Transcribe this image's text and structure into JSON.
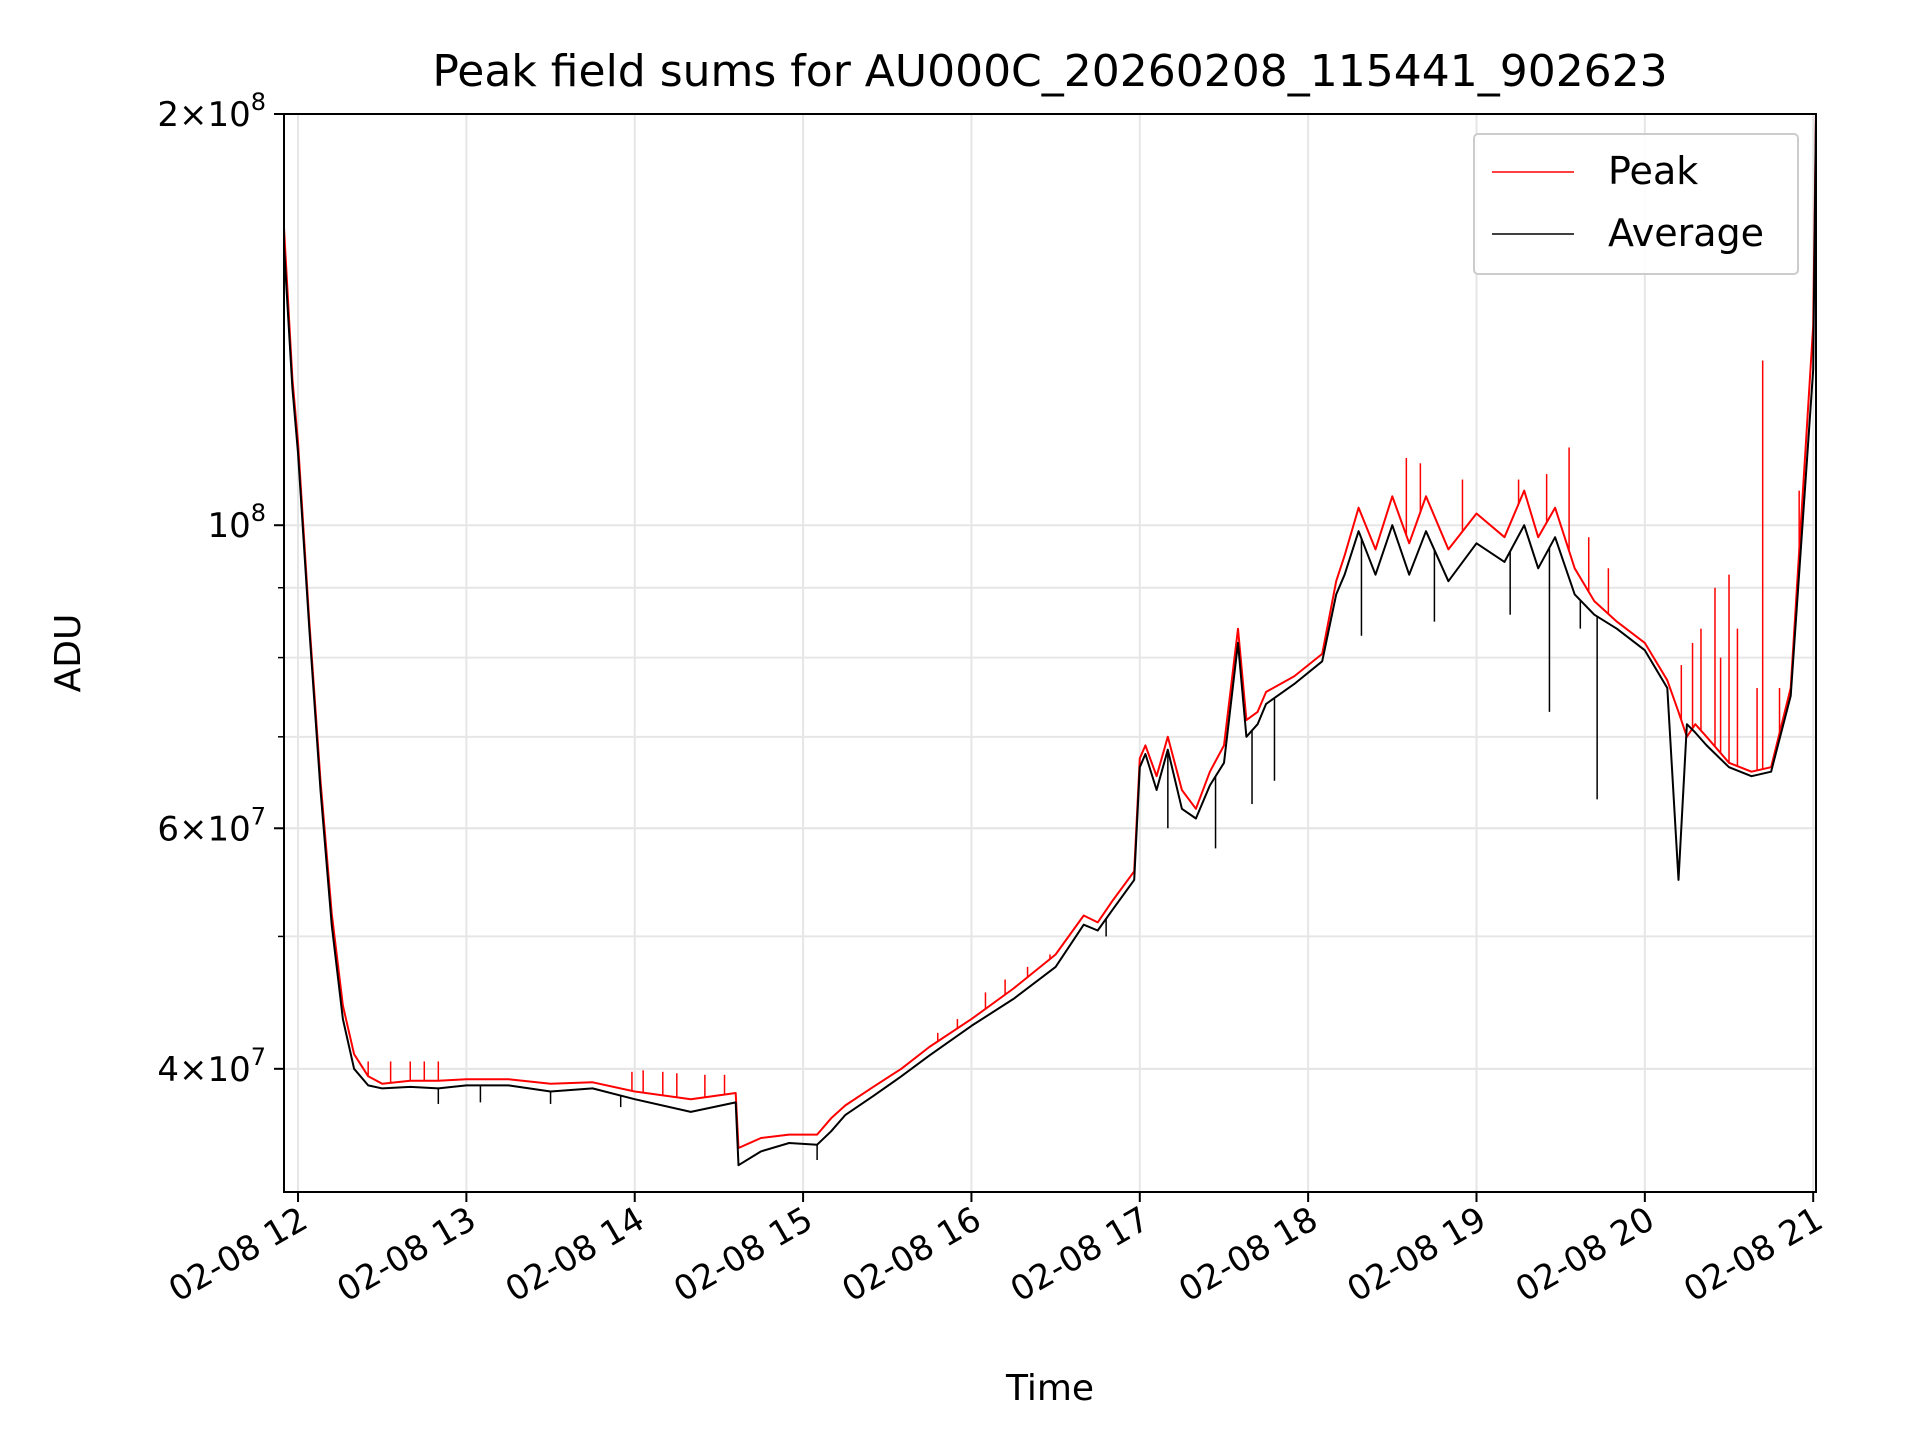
{
  "chart_data": {
    "type": "line",
    "title": "Peak field sums for AU000C_20260208_115441_902623",
    "xlabel": "Time",
    "ylabel": "ADU",
    "yscale": "log",
    "ylim": [
      32500000,
      200000000
    ],
    "xlim": [
      "02-08 11:55",
      "02-08 21:01"
    ],
    "grid": true,
    "legend": {
      "position": "top-right",
      "entries": [
        "Peak",
        "Average"
      ]
    },
    "x_ticks": [
      "02-08 12",
      "02-08 13",
      "02-08 14",
      "02-08 15",
      "02-08 16",
      "02-08 17",
      "02-08 18",
      "02-08 19",
      "02-08 20",
      "02-08 21"
    ],
    "y_ticks": [
      {
        "value": 40000000,
        "base": "4",
        "exp": "7"
      },
      {
        "value": 60000000,
        "base": "6",
        "exp": "7"
      },
      {
        "value": 100000000,
        "base": "",
        "exp": "8"
      },
      {
        "value": 200000000,
        "base": "2",
        "exp": "8"
      }
    ],
    "series": [
      {
        "name": "Peak",
        "color": "#ff0000",
        "x": [
          "02-08 11:55",
          "02-08 11:58",
          "02-08 12:00",
          "02-08 12:04",
          "02-08 12:08",
          "02-08 12:12",
          "02-08 12:16",
          "02-08 12:20",
          "02-08 12:25",
          "02-08 12:30",
          "02-08 12:40",
          "02-08 12:50",
          "02-08 13:00",
          "02-08 13:15",
          "02-08 13:30",
          "02-08 13:45",
          "02-08 14:00",
          "02-08 14:20",
          "02-08 14:36",
          "02-08 14:37",
          "02-08 14:45",
          "02-08 14:55",
          "02-08 15:05",
          "02-08 15:10",
          "02-08 15:15",
          "02-08 15:25",
          "02-08 15:35",
          "02-08 15:45",
          "02-08 16:00",
          "02-08 16:15",
          "02-08 16:30",
          "02-08 16:40",
          "02-08 16:45",
          "02-08 16:50",
          "02-08 16:58",
          "02-08 17:00",
          "02-08 17:02",
          "02-08 17:06",
          "02-08 17:10",
          "02-08 17:15",
          "02-08 17:20",
          "02-08 17:25",
          "02-08 17:30",
          "02-08 17:35",
          "02-08 17:38",
          "02-08 17:42",
          "02-08 17:45",
          "02-08 17:55",
          "02-08 18:05",
          "02-08 18:10",
          "02-08 18:13",
          "02-08 18:18",
          "02-08 18:24",
          "02-08 18:30",
          "02-08 18:36",
          "02-08 18:42",
          "02-08 18:50",
          "02-08 19:00",
          "02-08 19:10",
          "02-08 19:17",
          "02-08 19:22",
          "02-08 19:28",
          "02-08 19:35",
          "02-08 19:42",
          "02-08 19:50",
          "02-08 20:00",
          "02-08 20:08",
          "02-08 20:12",
          "02-08 20:15",
          "02-08 20:18",
          "02-08 20:22",
          "02-08 20:30",
          "02-08 20:38",
          "02-08 20:45",
          "02-08 20:52",
          "02-08 21:00",
          "02-08 21:01"
        ],
        "y": [
          165000000,
          128000000,
          115000000,
          85000000,
          65000000,
          52000000,
          44500000,
          41000000,
          39500000,
          39000000,
          39200000,
          39200000,
          39300000,
          39300000,
          39000000,
          39100000,
          38500000,
          38000000,
          38400000,
          35000000,
          35600000,
          35800000,
          35800000,
          36800000,
          37600000,
          38800000,
          40000000,
          41500000,
          43500000,
          45800000,
          48500000,
          51800000,
          51200000,
          53000000,
          55800000,
          67500000,
          69000000,
          65500000,
          70000000,
          64000000,
          62000000,
          66000000,
          69000000,
          84000000,
          72000000,
          73000000,
          75500000,
          77500000,
          80500000,
          91000000,
          95000000,
          103000000,
          96000000,
          105000000,
          97000000,
          105000000,
          96000000,
          102000000,
          98000000,
          106000000,
          98000000,
          103000000,
          93000000,
          88000000,
          85000000,
          82000000,
          77000000,
          73000000,
          70000000,
          71500000,
          70000000,
          67000000,
          66000000,
          66500000,
          76000000,
          140000000,
          200000000
        ]
      },
      {
        "name": "Average",
        "color": "#000000",
        "x": [
          "02-08 11:55",
          "02-08 11:58",
          "02-08 12:00",
          "02-08 12:04",
          "02-08 12:08",
          "02-08 12:12",
          "02-08 12:16",
          "02-08 12:20",
          "02-08 12:25",
          "02-08 12:30",
          "02-08 12:40",
          "02-08 12:50",
          "02-08 13:00",
          "02-08 13:15",
          "02-08 13:30",
          "02-08 13:45",
          "02-08 14:00",
          "02-08 14:20",
          "02-08 14:36",
          "02-08 14:37",
          "02-08 14:45",
          "02-08 14:55",
          "02-08 15:05",
          "02-08 15:10",
          "02-08 15:15",
          "02-08 15:25",
          "02-08 15:35",
          "02-08 15:45",
          "02-08 16:00",
          "02-08 16:15",
          "02-08 16:30",
          "02-08 16:40",
          "02-08 16:45",
          "02-08 16:50",
          "02-08 16:58",
          "02-08 17:00",
          "02-08 17:02",
          "02-08 17:06",
          "02-08 17:10",
          "02-08 17:15",
          "02-08 17:20",
          "02-08 17:25",
          "02-08 17:30",
          "02-08 17:35",
          "02-08 17:38",
          "02-08 17:42",
          "02-08 17:45",
          "02-08 17:55",
          "02-08 18:05",
          "02-08 18:10",
          "02-08 18:13",
          "02-08 18:18",
          "02-08 18:24",
          "02-08 18:30",
          "02-08 18:36",
          "02-08 18:42",
          "02-08 18:50",
          "02-08 19:00",
          "02-08 19:10",
          "02-08 19:17",
          "02-08 19:22",
          "02-08 19:28",
          "02-08 19:35",
          "02-08 19:42",
          "02-08 19:50",
          "02-08 20:00",
          "02-08 20:08",
          "02-08 20:12",
          "02-08 20:15",
          "02-08 20:18",
          "02-08 20:22",
          "02-08 20:30",
          "02-08 20:38",
          "02-08 20:45",
          "02-08 20:52",
          "02-08 21:00",
          "02-08 21:01"
        ],
        "y": [
          160000000,
          126000000,
          113000000,
          84000000,
          64000000,
          51000000,
          43500000,
          40000000,
          38900000,
          38700000,
          38800000,
          38700000,
          38900000,
          38900000,
          38500000,
          38700000,
          38000000,
          37200000,
          37800000,
          34000000,
          34800000,
          35300000,
          35200000,
          36000000,
          37000000,
          38200000,
          39500000,
          40900000,
          43000000,
          45000000,
          47500000,
          51000000,
          50500000,
          52200000,
          55000000,
          66500000,
          68000000,
          64000000,
          68500000,
          62000000,
          61000000,
          64500000,
          67000000,
          82000000,
          70000000,
          71500000,
          74000000,
          76500000,
          79500000,
          89000000,
          92000000,
          99000000,
          92000000,
          100000000,
          92000000,
          99000000,
          91000000,
          97000000,
          94000000,
          100000000,
          93000000,
          98000000,
          89000000,
          86000000,
          84000000,
          81000000,
          76000000,
          55000000,
          71500000,
          70500000,
          69000000,
          66500000,
          65500000,
          66000000,
          75000000,
          130000000,
          200000000
        ]
      }
    ],
    "spikes": {
      "Peak": [
        {
          "x": "02-08 12:25",
          "y": 40500000
        },
        {
          "x": "02-08 12:33",
          "y": 40500000
        },
        {
          "x": "02-08 12:40",
          "y": 40500000
        },
        {
          "x": "02-08 12:45",
          "y": 40500000
        },
        {
          "x": "02-08 12:50",
          "y": 40500000
        },
        {
          "x": "02-08 13:59",
          "y": 39800000
        },
        {
          "x": "02-08 14:03",
          "y": 39900000
        },
        {
          "x": "02-08 14:10",
          "y": 39800000
        },
        {
          "x": "02-08 14:15",
          "y": 39700000
        },
        {
          "x": "02-08 14:25",
          "y": 39600000
        },
        {
          "x": "02-08 14:32",
          "y": 39600000
        },
        {
          "x": "02-08 15:48",
          "y": 42500000
        },
        {
          "x": "02-08 15:55",
          "y": 43500000
        },
        {
          "x": "02-08 16:05",
          "y": 45500000
        },
        {
          "x": "02-08 16:12",
          "y": 46500000
        },
        {
          "x": "02-08 16:20",
          "y": 47500000
        },
        {
          "x": "02-08 16:28",
          "y": 48500000
        },
        {
          "x": "02-08 18:35",
          "y": 112000000
        },
        {
          "x": "02-08 18:40",
          "y": 111000000
        },
        {
          "x": "02-08 18:55",
          "y": 108000000
        },
        {
          "x": "02-08 19:15",
          "y": 108000000
        },
        {
          "x": "02-08 19:25",
          "y": 109000000
        },
        {
          "x": "02-08 19:33",
          "y": 114000000
        },
        {
          "x": "02-08 19:40",
          "y": 98000000
        },
        {
          "x": "02-08 19:47",
          "y": 93000000
        },
        {
          "x": "02-08 20:13",
          "y": 79000000
        },
        {
          "x": "02-08 20:17",
          "y": 82000000
        },
        {
          "x": "02-08 20:20",
          "y": 84000000
        },
        {
          "x": "02-08 20:25",
          "y": 90000000
        },
        {
          "x": "02-08 20:27",
          "y": 80000000
        },
        {
          "x": "02-08 20:30",
          "y": 92000000
        },
        {
          "x": "02-08 20:33",
          "y": 84000000
        },
        {
          "x": "02-08 20:40",
          "y": 76000000
        },
        {
          "x": "02-08 20:42",
          "y": 132000000
        },
        {
          "x": "02-08 20:48",
          "y": 76000000
        },
        {
          "x": "02-08 20:55",
          "y": 106000000
        }
      ],
      "Average": [
        {
          "x": "02-08 12:50",
          "y": 37700000
        },
        {
          "x": "02-08 13:05",
          "y": 37800000
        },
        {
          "x": "02-08 13:30",
          "y": 37700000
        },
        {
          "x": "02-08 13:55",
          "y": 37500000
        },
        {
          "x": "02-08 15:05",
          "y": 34300000
        },
        {
          "x": "02-08 16:48",
          "y": 50000000
        },
        {
          "x": "02-08 17:10",
          "y": 60000000
        },
        {
          "x": "02-08 17:27",
          "y": 58000000
        },
        {
          "x": "02-08 17:40",
          "y": 62500000
        },
        {
          "x": "02-08 17:48",
          "y": 65000000
        },
        {
          "x": "02-08 18:19",
          "y": 83000000
        },
        {
          "x": "02-08 18:45",
          "y": 85000000
        },
        {
          "x": "02-08 19:12",
          "y": 86000000
        },
        {
          "x": "02-08 19:26",
          "y": 73000000
        },
        {
          "x": "02-08 19:37",
          "y": 84000000
        },
        {
          "x": "02-08 19:43",
          "y": 63000000
        }
      ]
    }
  }
}
